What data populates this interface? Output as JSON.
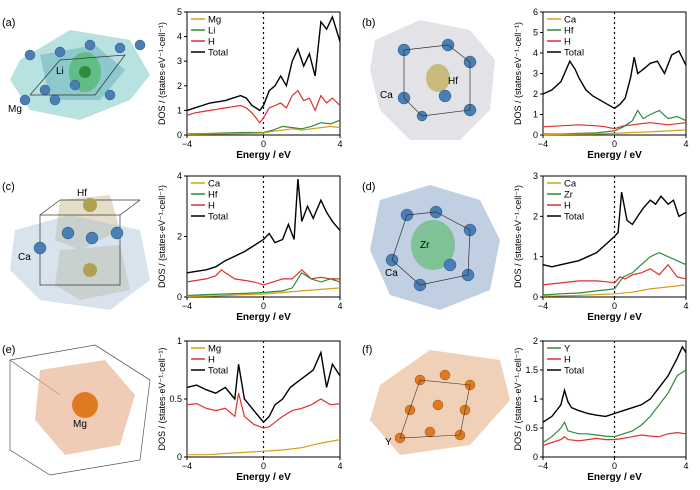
{
  "figure": {
    "panel_labels": [
      "(a)",
      "(b)",
      "(c)",
      "(d)",
      "(e)",
      "(f)"
    ],
    "xlabel": "Energy / eV",
    "ylabel": "DOS  / (states·eV⁻¹·cell⁻¹)",
    "colors": {
      "Mg": "#d4a017",
      "Li": "#2e8b3a",
      "H": "#e0302a",
      "Total": "#000000",
      "Ca": "#d4a017",
      "Hf": "#2e8b3a",
      "Zr": "#2e8b3a",
      "Y": "#2e8b3a"
    },
    "structures": [
      {
        "panel": "(a)",
        "labels": [
          "Li",
          "Mg"
        ]
      },
      {
        "panel": "(b)",
        "labels": [
          "Hf",
          "Ca"
        ]
      },
      {
        "panel": "(c)",
        "labels": [
          "Hf",
          "Ca"
        ]
      },
      {
        "panel": "(d)",
        "labels": [
          "Zr",
          "Ca"
        ]
      },
      {
        "panel": "(e)",
        "labels": [
          "Mg"
        ]
      },
      {
        "panel": "(f)",
        "labels": [
          "Y"
        ]
      }
    ]
  },
  "chart_data": [
    {
      "type": "line",
      "panel": "(a)",
      "xlim": [
        -4,
        4
      ],
      "ylim": [
        0,
        5
      ],
      "xticks": [
        -4,
        0,
        4
      ],
      "yticks": [
        0,
        1,
        2,
        3,
        4,
        5
      ],
      "legend": [
        "Mg",
        "Li",
        "H",
        "Total"
      ],
      "series": [
        {
          "name": "Total",
          "x": [
            -4,
            -3.6,
            -3.2,
            -2.8,
            -2.4,
            -2,
            -1.6,
            -1.2,
            -0.9,
            -0.6,
            -0.4,
            -0.2,
            0,
            0.3,
            0.6,
            0.9,
            1.2,
            1.5,
            1.8,
            2.1,
            2.4,
            2.7,
            3,
            3.3,
            3.6,
            4
          ],
          "y": [
            1.0,
            1.1,
            1.2,
            1.3,
            1.35,
            1.4,
            1.5,
            1.6,
            1.5,
            1.2,
            1.1,
            1.0,
            1.2,
            1.8,
            2.0,
            2.4,
            2.0,
            3.0,
            3.5,
            2.8,
            3.3,
            2.4,
            4.6,
            4.3,
            4.8,
            3.8
          ]
        },
        {
          "name": "H",
          "x": [
            -4,
            -3.6,
            -3.2,
            -2.8,
            -2.4,
            -2,
            -1.6,
            -1.2,
            -0.9,
            -0.6,
            -0.4,
            -0.2,
            0,
            0.3,
            0.6,
            0.9,
            1.2,
            1.5,
            1.8,
            2.1,
            2.4,
            2.7,
            3,
            3.3,
            3.6,
            4
          ],
          "y": [
            0.8,
            0.9,
            0.95,
            1.0,
            1.05,
            1.1,
            1.15,
            1.2,
            1.1,
            0.9,
            0.7,
            0.5,
            0.7,
            1.1,
            1.2,
            1.3,
            1.1,
            1.6,
            1.8,
            1.4,
            1.5,
            1.0,
            1.6,
            1.3,
            1.5,
            1.2
          ]
        },
        {
          "name": "Li",
          "x": [
            -4,
            -3,
            -2,
            -1,
            0,
            0.5,
            1,
            1.5,
            2,
            2.5,
            3,
            3.5,
            4
          ],
          "y": [
            0.05,
            0.06,
            0.08,
            0.1,
            0.1,
            0.2,
            0.35,
            0.3,
            0.25,
            0.35,
            0.5,
            0.45,
            0.6
          ]
        },
        {
          "name": "Mg",
          "x": [
            -4,
            -3,
            -2,
            -1,
            0,
            0.5,
            1,
            1.5,
            2,
            2.5,
            3,
            3.5,
            4
          ],
          "y": [
            0.03,
            0.04,
            0.05,
            0.06,
            0.08,
            0.15,
            0.2,
            0.25,
            0.2,
            0.25,
            0.3,
            0.35,
            0.3
          ]
        }
      ]
    },
    {
      "type": "line",
      "panel": "(b)",
      "xlim": [
        -4,
        4
      ],
      "ylim": [
        0,
        6
      ],
      "xticks": [
        -4,
        0,
        4
      ],
      "yticks": [
        0,
        1,
        2,
        3,
        4,
        5,
        6
      ],
      "legend": [
        "Ca",
        "Hf",
        "H",
        "Total"
      ],
      "series": [
        {
          "name": "Total",
          "x": [
            -4,
            -3.5,
            -3,
            -2.8,
            -2.5,
            -2.2,
            -2,
            -1.6,
            -1.2,
            -0.8,
            -0.4,
            0,
            0.3,
            0.6,
            0.9,
            1.1,
            1.3,
            1.6,
            2,
            2.4,
            2.8,
            3.2,
            3.6,
            4
          ],
          "y": [
            2.0,
            2.2,
            2.6,
            3.0,
            3.6,
            3.2,
            2.8,
            2.2,
            1.9,
            1.7,
            1.5,
            1.3,
            1.5,
            1.8,
            2.8,
            3.8,
            3.0,
            3.2,
            3.5,
            3.6,
            3.0,
            3.9,
            4.1,
            3.4
          ]
        },
        {
          "name": "H",
          "x": [
            -4,
            -3,
            -2,
            -1,
            -0.5,
            0,
            0.5,
            1,
            1.5,
            2,
            2.5,
            3,
            3.5,
            4
          ],
          "y": [
            0.4,
            0.45,
            0.5,
            0.45,
            0.4,
            0.3,
            0.45,
            0.5,
            0.55,
            0.6,
            0.55,
            0.5,
            0.55,
            0.6
          ]
        },
        {
          "name": "Hf",
          "x": [
            -4,
            -3,
            -2,
            -1,
            -0.5,
            0,
            0.5,
            1,
            1.3,
            1.6,
            2,
            2.5,
            3,
            3.5,
            4
          ],
          "y": [
            0.05,
            0.05,
            0.08,
            0.1,
            0.15,
            0.2,
            0.4,
            0.7,
            1.2,
            0.8,
            1.0,
            1.2,
            0.8,
            0.9,
            0.7
          ]
        },
        {
          "name": "Ca",
          "x": [
            -4,
            -3,
            -2,
            -1,
            0,
            1,
            2,
            3,
            4
          ],
          "y": [
            0.02,
            0.03,
            0.04,
            0.05,
            0.08,
            0.12,
            0.15,
            0.2,
            0.25
          ]
        }
      ]
    },
    {
      "type": "line",
      "panel": "(c)",
      "xlim": [
        -4,
        4
      ],
      "ylim": [
        0,
        4
      ],
      "xticks": [
        -4,
        0,
        4
      ],
      "yticks": [
        0,
        2,
        4
      ],
      "legend": [
        "Ca",
        "Hf",
        "H",
        "Total"
      ],
      "series": [
        {
          "name": "Total",
          "x": [
            -4,
            -3.5,
            -3,
            -2.5,
            -2,
            -1.5,
            -1,
            -0.5,
            0,
            0.3,
            0.6,
            1,
            1.3,
            1.6,
            1.8,
            2.0,
            2.3,
            2.6,
            3,
            3.3,
            3.6,
            4
          ],
          "y": [
            0.8,
            0.85,
            0.9,
            1.0,
            1.2,
            1.35,
            1.5,
            1.7,
            1.9,
            2.1,
            1.8,
            1.9,
            2.4,
            1.9,
            3.9,
            2.5,
            3.0,
            2.6,
            3.2,
            2.8,
            2.5,
            2.2
          ]
        },
        {
          "name": "H",
          "x": [
            -4,
            -3.5,
            -3,
            -2.5,
            -2.2,
            -2,
            -1.5,
            -1,
            -0.5,
            0,
            0.5,
            1,
            1.5,
            2,
            2.5,
            3,
            3.5,
            4
          ],
          "y": [
            0.5,
            0.55,
            0.6,
            0.7,
            0.9,
            0.8,
            0.6,
            0.55,
            0.5,
            0.4,
            0.5,
            0.6,
            0.6,
            0.9,
            0.6,
            0.65,
            0.6,
            0.6
          ]
        },
        {
          "name": "Hf",
          "x": [
            -4,
            -3,
            -2,
            -1,
            0,
            1,
            1.5,
            2,
            2.5,
            3,
            3.5,
            4
          ],
          "y": [
            0.05,
            0.08,
            0.1,
            0.12,
            0.15,
            0.2,
            0.3,
            0.8,
            0.6,
            0.5,
            0.6,
            0.5
          ]
        },
        {
          "name": "Ca",
          "x": [
            -4,
            -3,
            -2,
            -1,
            0,
            1,
            2,
            3,
            4
          ],
          "y": [
            0.02,
            0.03,
            0.05,
            0.08,
            0.1,
            0.15,
            0.2,
            0.25,
            0.3
          ]
        }
      ]
    },
    {
      "type": "line",
      "panel": "(d)",
      "xlim": [
        -4,
        4
      ],
      "ylim": [
        0,
        3
      ],
      "xticks": [
        -4,
        0,
        4
      ],
      "yticks": [
        0,
        1,
        2,
        3
      ],
      "legend": [
        "Ca",
        "Zr",
        "H",
        "Total"
      ],
      "series": [
        {
          "name": "Total",
          "x": [
            -4,
            -3.5,
            -3,
            -2.5,
            -2,
            -1.5,
            -1,
            -0.5,
            0,
            0.2,
            0.4,
            0.7,
            1,
            1.3,
            1.6,
            2,
            2.3,
            2.6,
            3,
            3.3,
            3.6,
            4
          ],
          "y": [
            0.8,
            0.75,
            0.8,
            0.85,
            0.9,
            1.0,
            1.1,
            1.3,
            1.5,
            1.6,
            2.6,
            1.9,
            1.8,
            2.0,
            2.2,
            2.4,
            2.3,
            2.5,
            2.3,
            2.4,
            2.0,
            2.1
          ]
        },
        {
          "name": "H",
          "x": [
            -4,
            -3,
            -2,
            -1,
            -0.5,
            0,
            0.3,
            0.6,
            1,
            1.5,
            2,
            2.5,
            3,
            3.5,
            4
          ],
          "y": [
            0.3,
            0.35,
            0.4,
            0.4,
            0.38,
            0.35,
            0.5,
            0.45,
            0.55,
            0.6,
            0.7,
            0.55,
            0.8,
            0.5,
            0.45
          ]
        },
        {
          "name": "Zr",
          "x": [
            -4,
            -3,
            -2,
            -1,
            0,
            0.5,
            1,
            1.5,
            2,
            2.5,
            3,
            3.5,
            4
          ],
          "y": [
            0.05,
            0.08,
            0.1,
            0.15,
            0.2,
            0.5,
            0.6,
            0.8,
            1.0,
            1.1,
            1.0,
            0.9,
            0.8
          ]
        },
        {
          "name": "Ca",
          "x": [
            -4,
            -3,
            -2,
            -1,
            0,
            1,
            2,
            3,
            4
          ],
          "y": [
            0.02,
            0.03,
            0.04,
            0.06,
            0.08,
            0.12,
            0.2,
            0.25,
            0.3
          ]
        }
      ]
    },
    {
      "type": "line",
      "panel": "(e)",
      "xlim": [
        -4,
        4
      ],
      "ylim": [
        0,
        1
      ],
      "xticks": [
        -4,
        0,
        4
      ],
      "yticks": [
        0,
        0.5,
        1
      ],
      "legend": [
        "Mg",
        "H",
        "Total"
      ],
      "series": [
        {
          "name": "Total",
          "x": [
            -4,
            -3.5,
            -3,
            -2.5,
            -2,
            -1.5,
            -1.3,
            -1,
            -0.5,
            0,
            0.3,
            0.6,
            1,
            1.4,
            1.8,
            2.2,
            2.6,
            3,
            3.3,
            3.6,
            4
          ],
          "y": [
            0.6,
            0.62,
            0.58,
            0.55,
            0.6,
            0.5,
            0.8,
            0.5,
            0.4,
            0.3,
            0.35,
            0.45,
            0.5,
            0.6,
            0.65,
            0.7,
            0.75,
            0.9,
            0.6,
            0.8,
            0.7
          ]
        },
        {
          "name": "H",
          "x": [
            -4,
            -3.5,
            -3,
            -2.5,
            -2,
            -1.5,
            -1.3,
            -1,
            -0.5,
            0,
            0.3,
            0.6,
            1,
            1.5,
            2,
            2.5,
            3,
            3.5,
            4
          ],
          "y": [
            0.45,
            0.46,
            0.42,
            0.4,
            0.42,
            0.35,
            0.55,
            0.35,
            0.28,
            0.25,
            0.26,
            0.3,
            0.35,
            0.4,
            0.42,
            0.45,
            0.5,
            0.45,
            0.46
          ]
        },
        {
          "name": "Mg",
          "x": [
            -4,
            -3,
            -2,
            -1,
            0,
            1,
            2,
            3,
            4
          ],
          "y": [
            0.02,
            0.02,
            0.03,
            0.04,
            0.05,
            0.06,
            0.08,
            0.12,
            0.15
          ]
        }
      ]
    },
    {
      "type": "line",
      "panel": "(f)",
      "xlim": [
        -4,
        4
      ],
      "ylim": [
        0,
        2
      ],
      "xticks": [
        -4,
        0,
        4
      ],
      "yticks": [
        0,
        0.5,
        1,
        1.5,
        2
      ],
      "legend": [
        "Y",
        "H",
        "Total"
      ],
      "series": [
        {
          "name": "Total",
          "x": [
            -4,
            -3.5,
            -3,
            -2.8,
            -2.6,
            -2.4,
            -2,
            -1.5,
            -1,
            -0.5,
            0,
            0.5,
            1,
            1.5,
            2,
            2.5,
            3,
            3.5,
            3.8,
            4
          ],
          "y": [
            0.6,
            0.7,
            0.9,
            1.15,
            0.95,
            0.85,
            0.8,
            0.75,
            0.72,
            0.7,
            0.75,
            0.8,
            0.85,
            0.9,
            1.0,
            1.2,
            1.4,
            1.7,
            1.9,
            1.8
          ]
        },
        {
          "name": "Y",
          "x": [
            -4,
            -3.5,
            -3,
            -2.8,
            -2.6,
            -2,
            -1.5,
            -1,
            -0.5,
            0,
            0.5,
            1,
            1.5,
            2,
            2.5,
            3,
            3.5,
            4
          ],
          "y": [
            0.25,
            0.35,
            0.5,
            0.6,
            0.45,
            0.4,
            0.4,
            0.38,
            0.36,
            0.35,
            0.4,
            0.45,
            0.55,
            0.7,
            0.9,
            1.1,
            1.4,
            1.5
          ]
        },
        {
          "name": "H",
          "x": [
            -4,
            -3.5,
            -3,
            -2.8,
            -2.6,
            -2,
            -1.5,
            -1,
            -0.5,
            0,
            0.5,
            1,
            1.5,
            2,
            2.5,
            3,
            3.5,
            4
          ],
          "y": [
            0.2,
            0.25,
            0.3,
            0.35,
            0.3,
            0.28,
            0.3,
            0.32,
            0.3,
            0.3,
            0.32,
            0.35,
            0.38,
            0.36,
            0.35,
            0.4,
            0.42,
            0.4
          ]
        }
      ]
    }
  ]
}
